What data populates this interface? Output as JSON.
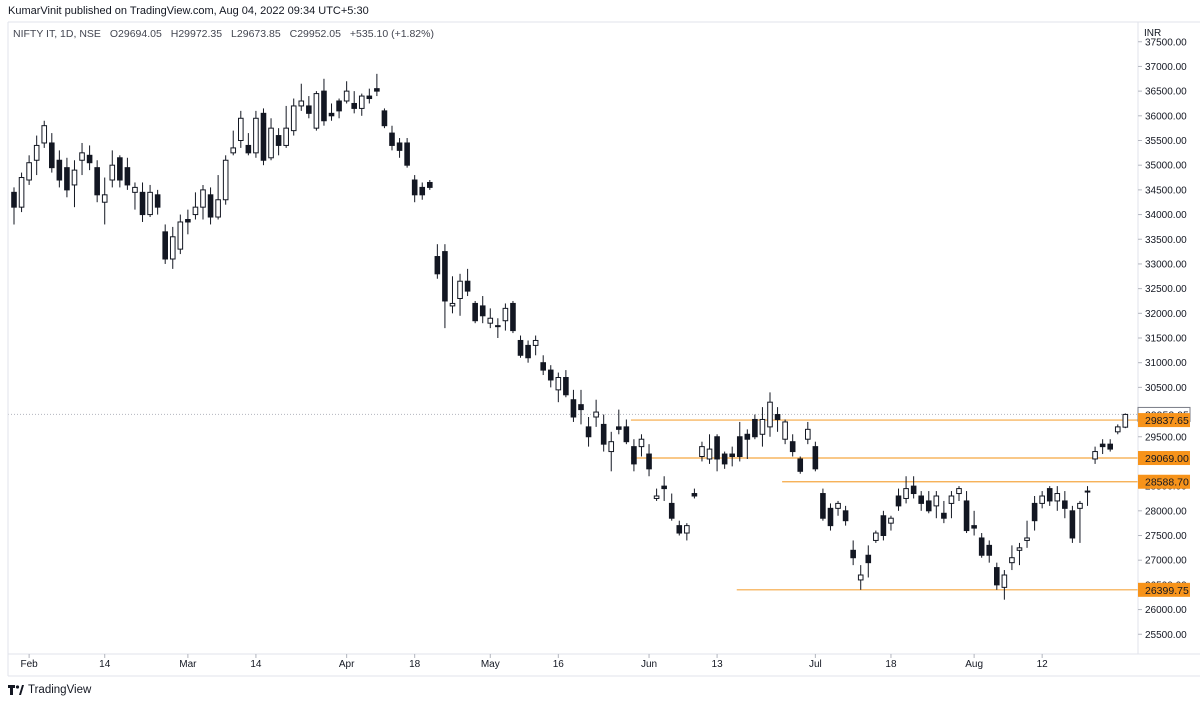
{
  "header": {
    "published": "KumarVinit published on TradingView.com, Aug 04, 2022 09:34 UTC+5:30",
    "symbol": "NIFTY IT, 1D, NSE",
    "open": "O29694.05",
    "high": "H29972.35",
    "low": "L29673.85",
    "close": "C29952.05",
    "change": "+535.10 (+1.82%)"
  },
  "footer": {
    "brand": "TradingView"
  },
  "chart_data": {
    "type": "candlestick",
    "currency": "INR",
    "ylim": [
      25100,
      37900
    ],
    "y_ticks": [
      25500,
      26000,
      26500,
      27000,
      27500,
      28000,
      28500,
      29000,
      29500,
      30000,
      30500,
      31000,
      31500,
      32000,
      32500,
      33000,
      33500,
      34000,
      34500,
      35000,
      35500,
      36000,
      36500,
      37000,
      37500
    ],
    "x_ticks": [
      "Feb",
      "14",
      "Mar",
      "14",
      "Apr",
      "18",
      "May",
      "16",
      "Jun",
      "13",
      "Jul",
      "18",
      "Aug",
      "12"
    ],
    "x_tick_index": [
      2,
      12,
      23,
      32,
      44,
      53,
      63,
      72,
      84,
      93,
      106,
      116,
      127,
      136
    ],
    "last_price": "29952.05",
    "levels": [
      {
        "label": "29837.65",
        "value": 29837.65,
        "from_index": 82
      },
      {
        "label": "29069.00",
        "value": 29069.0,
        "from_index": 82
      },
      {
        "label": "28588.70",
        "value": 28588.7,
        "from_index": 102
      },
      {
        "label": "26399.75",
        "value": 26399.75,
        "from_index": 96
      }
    ],
    "candles": [
      [
        34450,
        34550,
        33800,
        34150
      ],
      [
        34150,
        34850,
        34050,
        34750
      ],
      [
        34700,
        35200,
        34600,
        35050
      ],
      [
        35100,
        35600,
        34800,
        35400
      ],
      [
        35450,
        35900,
        35350,
        35800
      ],
      [
        35450,
        35650,
        34850,
        34950
      ],
      [
        35100,
        35300,
        34550,
        34700
      ],
      [
        34950,
        35150,
        34350,
        34500
      ],
      [
        34600,
        35100,
        34150,
        34900
      ],
      [
        35100,
        35450,
        34800,
        35250
      ],
      [
        35200,
        35400,
        34900,
        35050
      ],
      [
        34950,
        35100,
        34250,
        34400
      ],
      [
        34250,
        34750,
        33800,
        34400
      ],
      [
        34700,
        35300,
        34550,
        35000
      ],
      [
        35150,
        35200,
        34550,
        34700
      ],
      [
        34950,
        35150,
        34500,
        34600
      ],
      [
        34450,
        34650,
        34100,
        34550
      ],
      [
        34450,
        34650,
        33850,
        34000
      ],
      [
        34000,
        34600,
        33950,
        34450
      ],
      [
        34400,
        34500,
        34000,
        34150
      ],
      [
        33650,
        33800,
        33000,
        33100
      ],
      [
        33100,
        33750,
        32900,
        33550
      ],
      [
        33300,
        34000,
        33200,
        33850
      ],
      [
        33900,
        34100,
        33600,
        33850
      ],
      [
        34000,
        34450,
        33900,
        34150
      ],
      [
        34150,
        34600,
        33900,
        34500
      ],
      [
        34400,
        34550,
        33800,
        33950
      ],
      [
        33950,
        34800,
        33900,
        34300
      ],
      [
        34300,
        35200,
        34200,
        35100
      ],
      [
        35250,
        35700,
        35200,
        35350
      ],
      [
        35500,
        36100,
        35350,
        35950
      ],
      [
        35400,
        35650,
        35200,
        35250
      ],
      [
        35250,
        36100,
        35150,
        35950
      ],
      [
        36050,
        36150,
        35000,
        35100
      ],
      [
        35150,
        35950,
        35100,
        35750
      ],
      [
        35600,
        35750,
        35200,
        35400
      ],
      [
        35400,
        36200,
        35350,
        35750
      ],
      [
        35700,
        36350,
        35600,
        36200
      ],
      [
        36200,
        36650,
        36100,
        36300
      ],
      [
        36200,
        36400,
        35950,
        36050
      ],
      [
        35750,
        36500,
        35700,
        36450
      ],
      [
        36500,
        36750,
        35800,
        35900
      ],
      [
        36050,
        36250,
        35900,
        36000
      ],
      [
        36300,
        36350,
        35950,
        36100
      ],
      [
        36300,
        36700,
        36250,
        36500
      ],
      [
        36250,
        36500,
        36050,
        36150
      ],
      [
        36150,
        36450,
        36000,
        36400
      ],
      [
        36400,
        36550,
        36250,
        36350
      ],
      [
        36550,
        36850,
        36400,
        36500
      ],
      [
        36100,
        36150,
        35750,
        35800
      ],
      [
        35650,
        35800,
        35300,
        35400
      ],
      [
        35450,
        35550,
        35150,
        35300
      ],
      [
        35450,
        35550,
        34950,
        35000
      ],
      [
        34700,
        34800,
        34250,
        34400
      ],
      [
        34550,
        34650,
        34300,
        34400
      ],
      [
        34650,
        34700,
        34500,
        34550
      ],
      [
        33150,
        33400,
        32700,
        32800
      ],
      [
        33250,
        33400,
        31700,
        32250
      ],
      [
        32150,
        32750,
        32000,
        32200
      ],
      [
        32300,
        32800,
        31950,
        32650
      ],
      [
        32650,
        32900,
        32350,
        32450
      ],
      [
        32200,
        32250,
        31800,
        31850
      ],
      [
        32150,
        32350,
        31800,
        31950
      ],
      [
        31800,
        32100,
        31700,
        31900
      ],
      [
        31750,
        31900,
        31500,
        31750
      ],
      [
        31850,
        32200,
        31650,
        32100
      ],
      [
        32200,
        32250,
        31600,
        31650
      ],
      [
        31450,
        31550,
        31100,
        31150
      ],
      [
        31350,
        31450,
        31000,
        31100
      ],
      [
        31350,
        31550,
        31150,
        31450
      ],
      [
        31000,
        31150,
        30750,
        30850
      ],
      [
        30850,
        30950,
        30500,
        30650
      ],
      [
        30450,
        30800,
        30200,
        30700
      ],
      [
        30700,
        30850,
        30300,
        30350
      ],
      [
        30250,
        30450,
        29800,
        29900
      ],
      [
        30150,
        30450,
        29750,
        30050
      ],
      [
        29700,
        29900,
        29300,
        29500
      ],
      [
        29900,
        30250,
        29700,
        30000
      ],
      [
        29750,
        29950,
        29200,
        29350
      ],
      [
        29200,
        29600,
        28800,
        29400
      ],
      [
        29700,
        30050,
        29550,
        29650
      ],
      [
        29700,
        29850,
        29350,
        29400
      ],
      [
        29300,
        29450,
        28800,
        28950
      ],
      [
        29300,
        29550,
        29100,
        29450
      ],
      [
        29150,
        29350,
        28700,
        28850
      ],
      [
        28250,
        28450,
        28200,
        28300
      ],
      [
        28500,
        28700,
        28200,
        28450
      ],
      [
        28150,
        28350,
        27800,
        27850
      ],
      [
        27700,
        27800,
        27500,
        27550
      ],
      [
        27550,
        27750,
        27400,
        27700
      ],
      [
        28350,
        28450,
        28250,
        28300
      ],
      [
        29100,
        29400,
        29000,
        29300
      ],
      [
        29050,
        29550,
        28950,
        29250
      ],
      [
        29500,
        29550,
        28800,
        29050
      ],
      [
        29150,
        29200,
        28850,
        28950
      ],
      [
        29150,
        29300,
        28900,
        29100
      ],
      [
        29500,
        29800,
        29000,
        29100
      ],
      [
        29550,
        29650,
        29050,
        29450
      ],
      [
        29850,
        29950,
        29450,
        29500
      ],
      [
        29550,
        30100,
        29300,
        29850
      ],
      [
        29700,
        30400,
        29500,
        30200
      ],
      [
        29950,
        30100,
        29600,
        29850
      ],
      [
        29450,
        29850,
        29350,
        29800
      ],
      [
        29400,
        29550,
        29100,
        29200
      ],
      [
        29050,
        29100,
        28750,
        28800
      ],
      [
        29450,
        29800,
        29350,
        29650
      ],
      [
        29300,
        29400,
        28800,
        28850
      ],
      [
        28350,
        28450,
        27800,
        27850
      ],
      [
        28050,
        28150,
        27600,
        27700
      ],
      [
        28050,
        28200,
        27900,
        28150
      ],
      [
        28000,
        28100,
        27700,
        27800
      ],
      [
        27200,
        27400,
        26900,
        27050
      ],
      [
        26600,
        26900,
        26400,
        26700
      ],
      [
        27100,
        27300,
        26650,
        26950
      ],
      [
        27400,
        27600,
        27350,
        27550
      ],
      [
        27900,
        28000,
        27400,
        27500
      ],
      [
        27750,
        27900,
        27600,
        27850
      ],
      [
        28300,
        28450,
        28000,
        28100
      ],
      [
        28250,
        28700,
        28150,
        28450
      ],
      [
        28500,
        28700,
        28250,
        28350
      ],
      [
        28300,
        28400,
        28000,
        28150
      ],
      [
        28200,
        28400,
        27950,
        28000
      ],
      [
        28100,
        28400,
        27850,
        28300
      ],
      [
        27950,
        28200,
        27750,
        27850
      ],
      [
        28150,
        28400,
        27850,
        28300
      ],
      [
        28350,
        28500,
        28200,
        28450
      ],
      [
        28200,
        28400,
        27550,
        27600
      ],
      [
        27700,
        28000,
        27500,
        27650
      ],
      [
        27450,
        27550,
        27050,
        27100
      ],
      [
        27300,
        27400,
        26950,
        27100
      ],
      [
        26850,
        26950,
        26400,
        26500
      ],
      [
        26450,
        26800,
        26200,
        26700
      ],
      [
        26950,
        27300,
        26800,
        27050
      ],
      [
        27200,
        27350,
        26900,
        27250
      ],
      [
        27400,
        27800,
        27250,
        27450
      ],
      [
        28150,
        28300,
        27600,
        27800
      ],
      [
        28150,
        28400,
        28050,
        28300
      ],
      [
        28450,
        28500,
        28100,
        28200
      ],
      [
        28200,
        28500,
        28000,
        28350
      ],
      [
        28200,
        28400,
        27850,
        28050
      ],
      [
        28000,
        28100,
        27350,
        27450
      ],
      [
        28050,
        28200,
        27350,
        28150
      ],
      [
        28400,
        28500,
        28100,
        28400
      ],
      [
        29050,
        29300,
        28950,
        29200
      ],
      [
        29350,
        29450,
        29150,
        29300
      ],
      [
        29350,
        29450,
        29200,
        29250
      ],
      [
        29600,
        29750,
        29550,
        29700
      ],
      [
        29694.05,
        29972.35,
        29673.85,
        29952.05
      ]
    ]
  }
}
